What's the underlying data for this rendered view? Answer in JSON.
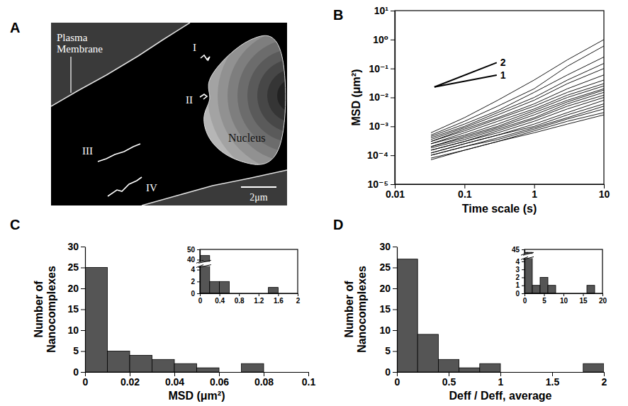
{
  "panel_a": {
    "panel": "A",
    "labels": [
      "Plasma Membrane",
      "Nucleus"
    ],
    "trajectories": [
      "I",
      "II",
      "III",
      "IV"
    ],
    "scale_bar": "2μm"
  },
  "chart_data": [
    {
      "panel": "B",
      "type": "line",
      "log": true,
      "color": "#000000",
      "xlabel": "Time scale (s)",
      "ylabel": "MSD (μm²)",
      "xlim": [
        0.01,
        10
      ],
      "ylim": [
        1e-05,
        10
      ],
      "xticks": [
        0.01,
        0.1,
        1,
        10
      ],
      "yticks": [
        {
          "value": 1e-05,
          "label": "10⁻⁵"
        },
        {
          "value": 0.0001,
          "label": "10⁻⁴"
        },
        {
          "value": 0.001,
          "label": "10⁻³"
        },
        {
          "value": 0.01,
          "label": "10⁻²"
        },
        {
          "value": 0.1,
          "label": "10⁻¹"
        },
        {
          "value": 1,
          "label": "10⁰"
        },
        {
          "value": 10,
          "label": "10¹"
        }
      ],
      "x": [
        0.033,
        0.1,
        0.3,
        1,
        3,
        10
      ],
      "series": [
        {
          "values": [
            0.0006,
            0.002,
            0.008,
            0.04,
            0.2,
            1
          ]
        },
        {
          "values": [
            0.0005,
            0.0015,
            0.005,
            0.02,
            0.12,
            0.6
          ]
        },
        {
          "values": [
            0.00045,
            0.0012,
            0.0035,
            0.015,
            0.06,
            0.25
          ]
        },
        {
          "values": [
            0.0004,
            0.001,
            0.003,
            0.01,
            0.04,
            0.15
          ]
        },
        {
          "values": [
            0.00035,
            0.0009,
            0.0025,
            0.008,
            0.03,
            0.1
          ]
        },
        {
          "values": [
            0.0003,
            0.0008,
            0.002,
            0.006,
            0.02,
            0.06
          ]
        },
        {
          "values": [
            0.0003,
            0.0007,
            0.0018,
            0.005,
            0.015,
            0.04
          ]
        },
        {
          "values": [
            0.00025,
            0.0006,
            0.0015,
            0.004,
            0.012,
            0.03
          ]
        },
        {
          "values": [
            0.00025,
            0.0005,
            0.0012,
            0.0035,
            0.01,
            0.025
          ]
        },
        {
          "values": [
            0.0002,
            0.00045,
            0.001,
            0.003,
            0.008,
            0.02
          ]
        },
        {
          "values": [
            0.0002,
            0.0004,
            0.0009,
            0.0025,
            0.007,
            0.018
          ]
        },
        {
          "values": [
            0.00018,
            0.00035,
            0.0008,
            0.002,
            0.006,
            0.015
          ]
        },
        {
          "values": [
            0.00015,
            0.0003,
            0.0007,
            0.0018,
            0.005,
            0.012
          ]
        },
        {
          "values": [
            0.00015,
            0.0003,
            0.0006,
            0.0015,
            0.004,
            0.01
          ]
        },
        {
          "values": [
            0.00012,
            0.00025,
            0.0005,
            0.0012,
            0.003,
            0.008
          ]
        },
        {
          "values": [
            0.00012,
            0.00025,
            0.0005,
            0.001,
            0.0025,
            0.006
          ]
        },
        {
          "values": [
            0.0001,
            0.0002,
            0.0004,
            0.0009,
            0.002,
            0.005
          ]
        },
        {
          "values": [
            0.0001,
            0.0002,
            0.00035,
            0.0008,
            0.0018,
            0.004
          ]
        },
        {
          "values": [
            8e-05,
            0.00015,
            0.0003,
            0.0007,
            0.0015,
            0.003
          ]
        },
        {
          "values": [
            7e-05,
            0.00015,
            0.0003,
            0.0006,
            0.0012,
            0.0025
          ]
        }
      ],
      "annotations": [
        {
          "text": "2",
          "x": [
            0.037,
            0.29
          ],
          "y": [
            0.023,
            0.16
          ]
        },
        {
          "text": "1",
          "x": [
            0.037,
            0.29
          ],
          "y": [
            0.023,
            0.059
          ]
        }
      ]
    },
    {
      "panel": "C",
      "type": "histogram",
      "color": "#555555",
      "xlabel": "MSD (μm²)",
      "ylabel": "Number of Nanocomplexes",
      "xlim": [
        0,
        0.1
      ],
      "ylim": [
        0,
        30
      ],
      "xticks": [
        0,
        0.02,
        0.04,
        0.06,
        0.08,
        0.1
      ],
      "yticks": [
        0,
        5,
        10,
        15,
        20,
        25,
        30
      ],
      "bins": [
        0,
        0.01,
        0.02,
        0.03,
        0.04,
        0.05,
        0.06,
        0.07,
        0.08
      ],
      "values": [
        25,
        5,
        4,
        3,
        2,
        1,
        0,
        2
      ]
    },
    {
      "type": "histogram",
      "color": "#555555",
      "xlim": [
        0,
        2
      ],
      "ylim": [
        0,
        50
      ],
      "y_break": [
        4.6,
        38
      ],
      "xticks": [
        0,
        0.4,
        0.8,
        1.2,
        1.6,
        2
      ],
      "yticks": [
        0,
        2,
        4,
        40,
        50
      ],
      "bins": [
        0,
        0.2,
        0.4,
        0.6,
        0.8,
        1,
        1.2,
        1.4,
        1.6
      ],
      "values": [
        44,
        2,
        2,
        0,
        0,
        0,
        0,
        1
      ]
    },
    {
      "panel": "D",
      "type": "histogram",
      "color": "#555555",
      "xlabel": "Deff / Deff, average",
      "ylabel": "Number of Nanocomplexes",
      "xlim": [
        0,
        2
      ],
      "ylim": [
        0,
        30
      ],
      "xticks": [
        0,
        0.5,
        1,
        1.5,
        2
      ],
      "yticks": [
        0,
        5,
        10,
        15,
        20,
        25,
        30
      ],
      "bins": [
        0,
        0.2,
        0.4,
        0.6,
        0.8,
        1,
        1.2,
        1.4,
        1.6,
        1.8,
        2
      ],
      "values": [
        27,
        9,
        3,
        1,
        2,
        0,
        0,
        0,
        0,
        2
      ]
    },
    {
      "type": "histogram",
      "color": "#555555",
      "xlim": [
        0,
        20
      ],
      "ylim": [
        0,
        45
      ],
      "y_break": [
        4.4,
        43.5
      ],
      "xticks": [
        0,
        5,
        10,
        15,
        20
      ],
      "yticks": [
        0,
        1,
        2,
        3,
        4,
        45
      ],
      "bins": [
        0,
        2,
        4,
        6,
        8,
        10,
        12,
        14,
        16,
        18
      ],
      "values": [
        44,
        1,
        2,
        1,
        0,
        0,
        0,
        0,
        1
      ]
    }
  ]
}
